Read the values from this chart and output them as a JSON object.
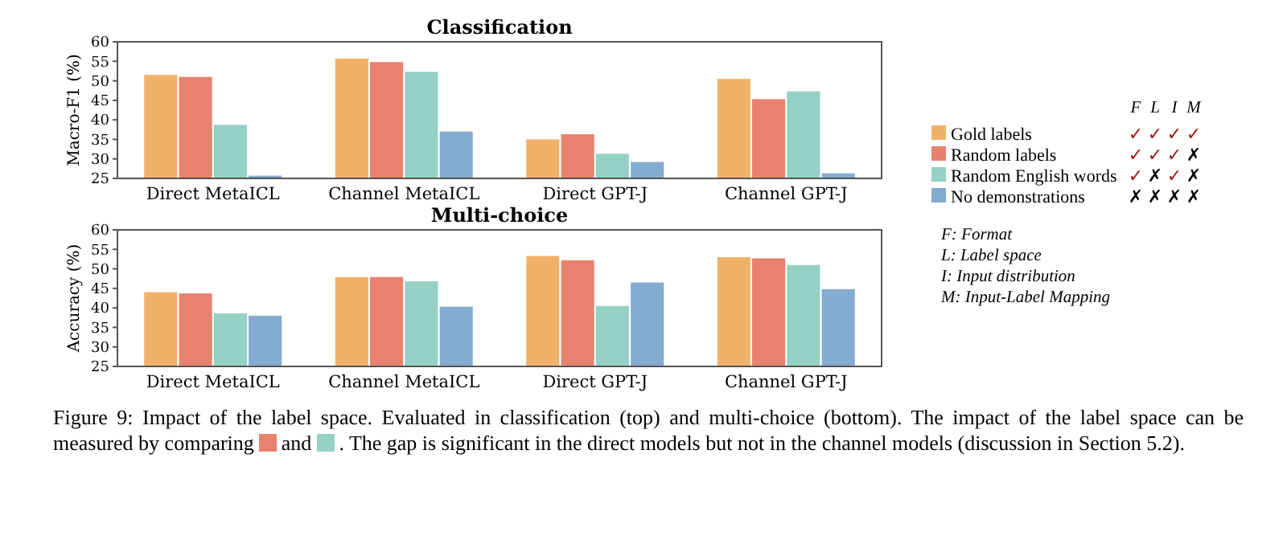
{
  "chart_data": [
    {
      "type": "bar",
      "title": "Classification",
      "ylabel": "Macro-F1 (%)",
      "categories": [
        "Direct MetaICL",
        "Channel MetaICL",
        "Direct GPT-J",
        "Channel GPT-J"
      ],
      "ylim": [
        25,
        60
      ],
      "yticks": [
        25,
        30,
        35,
        40,
        45,
        50,
        55,
        60
      ],
      "legend": "right",
      "series": [
        {
          "name": "Gold labels",
          "color": "#f0b26b",
          "values": [
            51.5,
            55.7,
            35,
            50.5
          ]
        },
        {
          "name": "Random labels",
          "color": "#e8826f",
          "values": [
            51,
            54.8,
            36.3,
            45.3
          ]
        },
        {
          "name": "Random English words",
          "color": "#95d1c5",
          "values": [
            38.7,
            52.3,
            31.3,
            47.3
          ]
        },
        {
          "name": "No demonstrations",
          "color": "#84abd0",
          "values": [
            25.7,
            37,
            29.2,
            26.3
          ]
        }
      ]
    },
    {
      "type": "bar",
      "title": "Multi-choice",
      "ylabel": "Accuracy (%)",
      "categories": [
        "Direct MetaICL",
        "Channel MetaICL",
        "Direct GPT-J",
        "Channel GPT-J"
      ],
      "ylim": [
        25,
        60
      ],
      "yticks": [
        25,
        30,
        35,
        40,
        45,
        50,
        55,
        60
      ],
      "series": [
        {
          "color": "#f0b26b",
          "values": [
            44,
            47.9,
            53.3,
            53
          ]
        },
        {
          "color": "#e8826f",
          "values": [
            43.7,
            47.9,
            52.2,
            52.7
          ]
        },
        {
          "color": "#95d1c5",
          "values": [
            38.6,
            46.8,
            40.5,
            51
          ]
        },
        {
          "color": "#84abd0",
          "values": [
            38,
            40.3,
            46.5,
            44.8
          ]
        }
      ]
    },
    {
      "type": "other",
      "categories": [
        "F",
        "L",
        "I",
        "M"
      ],
      "cell_labels": [
        [
          "✓",
          "✓",
          "✓",
          "✓"
        ],
        [
          "✓",
          "✓",
          "✓",
          "✗"
        ],
        [
          "✓",
          "✗",
          "✓",
          "✗"
        ],
        [
          "✗",
          "✗",
          "✗",
          "✗"
        ]
      ],
      "annotations": [
        "F: Format",
        "L: Label space",
        "I: Input distribution",
        "M: Input-Label Mapping",
        "Figure 9: Impact of the label space. Evaluated in classification (top) and multi-choice (bottom). The impact of the label space can be measured by comparing",
        "and",
        ". The gap is significant in the direct models but not in the channel models (discussion in Section 5.2)."
      ]
    }
  ]
}
